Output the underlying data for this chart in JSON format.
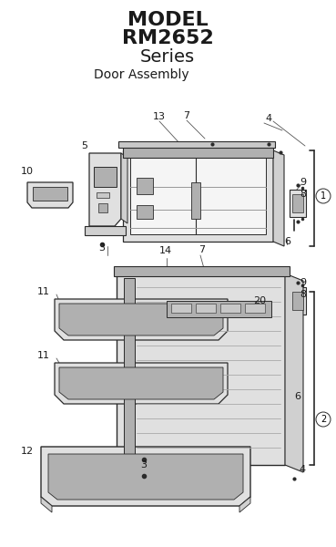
{
  "title_line1": "MODEL",
  "title_line2": "RM2652",
  "title_line3": "Series",
  "subtitle": "Door Assembly",
  "bg_color": "#ffffff",
  "line_color": "#2a2a2a",
  "title_fontsize": 16,
  "subtitle_fontsize": 10,
  "label_fontsize": 8,
  "fig_width": 3.69,
  "fig_height": 6.0
}
